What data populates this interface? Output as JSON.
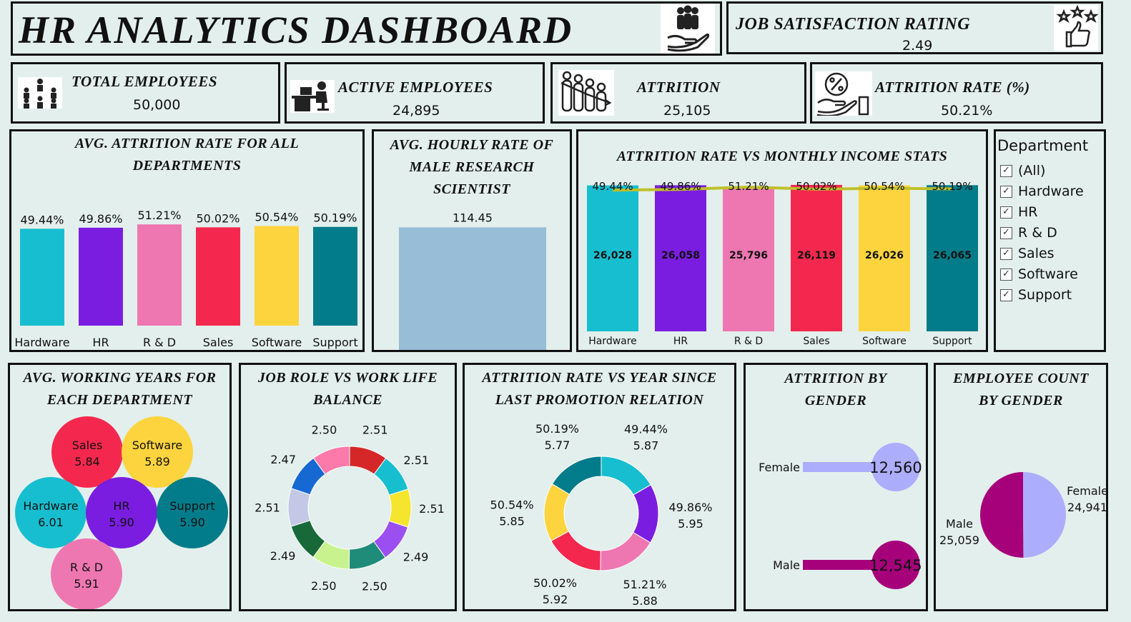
{
  "header": {
    "title": "HR ANALYTICS DASHBOARD",
    "title_icon": "people-hand-icon"
  },
  "job_satisfaction": {
    "label": "JOB SATISFACTION RATING",
    "value": "2.49",
    "icon": "thumbs-up-stars-icon"
  },
  "kpis": [
    {
      "label": "TOTAL EMPLOYEES",
      "value": "50,000",
      "icon": "team-icon"
    },
    {
      "label": "ACTIVE EMPLOYEES",
      "value": "24,895",
      "icon": "desk-worker-icon"
    },
    {
      "label": "ATTRITION",
      "value": "25,105",
      "icon": "falling-people-icon"
    },
    {
      "label": "ATTRITION  RATE (%)",
      "value": "50.21%",
      "icon": "percent-hand-icon"
    }
  ],
  "colors": {
    "Hardware": "#17becf",
    "HR": "#7a1de0",
    "R & D": "#ee77b2",
    "Sales": "#f4284e",
    "Software": "#fdd43d",
    "Support": "#027c8a",
    "female": "#adadfd",
    "male": "#a6007b",
    "line": "#bfc02a"
  },
  "chart_data": [
    {
      "id": "avg_attrition_rate",
      "type": "bar",
      "title": "AVG. ATTRITION RATE FOR ALL DEPARTMENTS",
      "categories": [
        "Hardware",
        "HR",
        "R & D",
        "Sales",
        "Software",
        "Support"
      ],
      "values": [
        49.44,
        49.86,
        51.21,
        50.02,
        50.54,
        50.19
      ],
      "labels": [
        "49.44%",
        "49.86%",
        "51.21%",
        "50.02%",
        "50.54%",
        "50.19%"
      ]
    },
    {
      "id": "hourly_rate",
      "type": "bar",
      "title": "AVG. HOURLY RATE OF MALE RESEARCH SCIENTIST",
      "categories": [
        ""
      ],
      "values": [
        114.45
      ],
      "labels": [
        "114.45"
      ]
    },
    {
      "id": "attrition_vs_income",
      "type": "bar",
      "title": "ATTRITION RATE VS MONTHLY INCOME STATS",
      "categories": [
        "Hardware",
        "HR",
        "R & D",
        "Sales",
        "Software",
        "Support"
      ],
      "series": [
        {
          "name": "",
          "values": [
            26028,
            26058,
            25796,
            26119,
            26026,
            26065
          ],
          "labels": [
            "26,028",
            "26,058",
            "25,796",
            "26,119",
            "26,026",
            "26,065"
          ]
        },
        {
          "name": "",
          "values": [
            49.44,
            49.86,
            51.21,
            50.02,
            50.54,
            50.19
          ],
          "labels": [
            "49.44%",
            "49.86%",
            "51.21%",
            "50.02%",
            "50.54%",
            "50.19%"
          ]
        }
      ]
    },
    {
      "id": "avg_working_years",
      "type": "scatter",
      "title": "AVG. WORKING YEARS FOR EACH DEPARTMENT",
      "points": [
        {
          "name": "Sales",
          "value": 5.84,
          "label": "5.84"
        },
        {
          "name": "Software",
          "value": 5.89,
          "label": "5.89"
        },
        {
          "name": "Hardware",
          "value": 6.01,
          "label": "6.01"
        },
        {
          "name": "HR",
          "value": 5.9,
          "label": "5.90"
        },
        {
          "name": "Support",
          "value": 5.9,
          "label": "5.90"
        },
        {
          "name": "R & D",
          "value": 5.91,
          "label": "5.91"
        }
      ]
    },
    {
      "id": "job_role_wlb",
      "type": "pie",
      "title": "JOB ROLE VS WORK LIFE BALANCE",
      "values": [
        2.51,
        2.51,
        2.51,
        2.49,
        2.5,
        2.5,
        2.49,
        2.51,
        2.47,
        2.5
      ],
      "labels": [
        "2.51",
        "2.51",
        "2.51",
        "2.49",
        "2.50",
        "2.50",
        "2.49",
        "2.51",
        "2.47",
        "2.50"
      ],
      "colors": [
        "#d62728",
        "#17becf",
        "#f5e52f",
        "#9b4ff0",
        "#1f8c7a",
        "#c8f28e",
        "#17693a",
        "#c2c8e5",
        "#1669d2",
        "#fb7aa9"
      ]
    },
    {
      "id": "attrition_vs_promotion",
      "type": "pie",
      "title": "ATTRITION RATE VS YEAR SINCE LAST PROMOTION RELATION",
      "slices": [
        {
          "name": "Hardware",
          "rate": "49.44%",
          "years": "5.87",
          "value": 5.87
        },
        {
          "name": "HR",
          "rate": "49.86%",
          "years": "5.95",
          "value": 5.95
        },
        {
          "name": "R & D",
          "rate": "51.21%",
          "years": "5.88",
          "value": 5.88
        },
        {
          "name": "Sales",
          "rate": "50.02%",
          "years": "5.92",
          "value": 5.92
        },
        {
          "name": "Software",
          "rate": "50.54%",
          "years": "5.85",
          "value": 5.85
        },
        {
          "name": "Support",
          "rate": "50.19%",
          "years": "5.77",
          "value": 5.77
        }
      ]
    },
    {
      "id": "attrition_by_gender",
      "type": "bar",
      "title": "ATTRITION BY GENDER",
      "categories": [
        "Female",
        "Male"
      ],
      "values": [
        12560,
        12545
      ],
      "labels": [
        "12,560",
        "12,545"
      ]
    },
    {
      "id": "employee_count_gender",
      "type": "pie",
      "title": "EMPLOYEE COUNT BY GENDER",
      "categories": [
        "Female",
        "Male"
      ],
      "values": [
        24941,
        25059
      ],
      "labels": [
        "24,941",
        "25,059"
      ]
    }
  ],
  "slicer": {
    "title": "Department",
    "items": [
      {
        "label": "(All)",
        "checked": true
      },
      {
        "label": "Hardware",
        "checked": true
      },
      {
        "label": "HR",
        "checked": true
      },
      {
        "label": "R & D",
        "checked": true
      },
      {
        "label": "Sales",
        "checked": true
      },
      {
        "label": "Software",
        "checked": true
      },
      {
        "label": "Support",
        "checked": true
      }
    ]
  }
}
